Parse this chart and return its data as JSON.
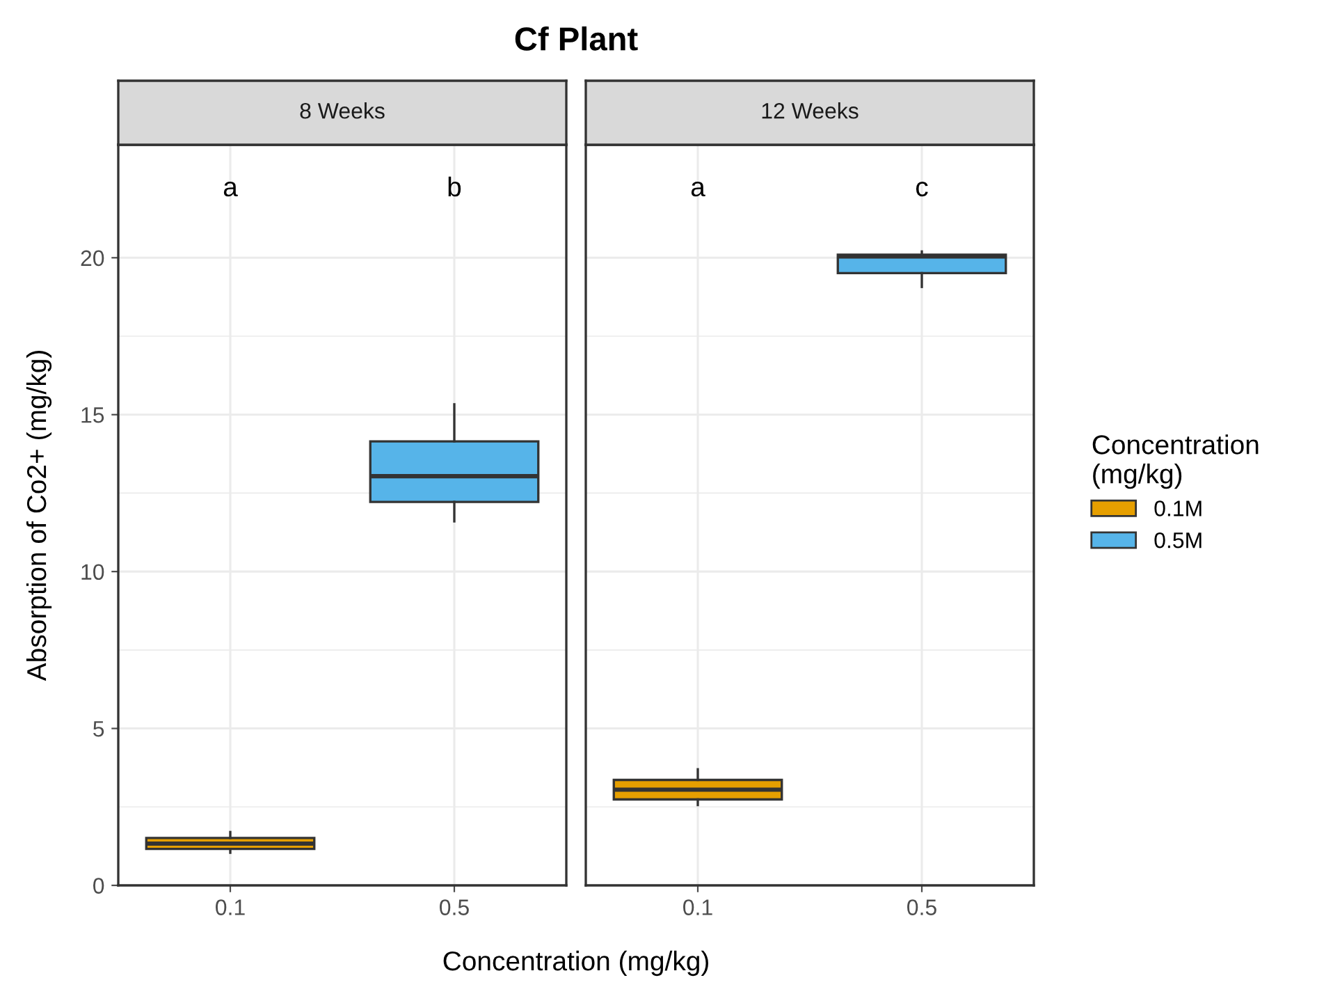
{
  "chart_data": [
    {
      "type": "box",
      "title": "Cf Plant",
      "subtitle": "8 Weeks",
      "xlabel": "Concentration (mg/kg)",
      "ylabel": "Absorption of Co2+ (mg/kg)",
      "categories": [
        "0.1",
        "0.5"
      ],
      "series": [
        {
          "name": "0.1M",
          "color": "#e69f00",
          "boxes": [
            {
              "low": 1.04,
              "q1": 1.16,
              "median": 1.33,
              "q3": 1.51,
              "high": 1.7
            },
            null
          ]
        },
        {
          "name": "0.5M",
          "color": "#56b4e9",
          "boxes": [
            null,
            {
              "low": 11.6,
              "q1": 12.22,
              "median": 13.04,
              "q3": 14.15,
              "high": 15.33
            }
          ]
        }
      ],
      "ylim": [
        0,
        23.6
      ],
      "yticks": [
        0,
        5,
        10,
        15,
        20
      ],
      "grid": true,
      "legend": "right",
      "legend_title": "Concentration\n(mg/kg)",
      "annotations": [
        "a",
        "b"
      ]
    },
    {
      "type": "box",
      "subtitle": "12 Weeks",
      "categories": [
        "0.1",
        "0.5"
      ],
      "series": [
        {
          "color": "#e69f00",
          "boxes": [
            {
              "low": 2.56,
              "q1": 2.74,
              "median": 3.05,
              "q3": 3.36,
              "high": 3.7
            },
            null
          ]
        },
        {
          "color": "#56b4e9",
          "boxes": [
            null,
            {
              "low": 19.07,
              "q1": 19.51,
              "median": 20.04,
              "q3": 20.1,
              "high": 20.2
            }
          ]
        }
      ],
      "ylim": [
        0,
        23.6
      ],
      "yticks": [
        0,
        5,
        10,
        15,
        20
      ],
      "grid": true,
      "tick_labels": "x",
      "annotations": [
        "a",
        "c"
      ]
    }
  ]
}
